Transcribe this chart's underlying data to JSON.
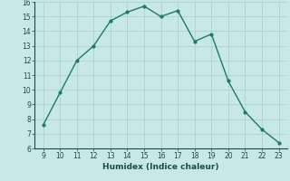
{
  "x": [
    9,
    10,
    11,
    12,
    13,
    14,
    15,
    16,
    17,
    18,
    19,
    20,
    21,
    22,
    23
  ],
  "y": [
    7.6,
    9.8,
    12.0,
    13.0,
    14.7,
    15.3,
    15.7,
    15.0,
    15.4,
    13.3,
    13.8,
    10.6,
    8.5,
    7.3,
    6.4
  ],
  "xlabel": "Humidex (Indice chaleur)",
  "xlim": [
    8.5,
    23.5
  ],
  "ylim": [
    6,
    16
  ],
  "yticks": [
    6,
    7,
    8,
    9,
    10,
    11,
    12,
    13,
    14,
    15,
    16
  ],
  "xticks": [
    9,
    10,
    11,
    12,
    13,
    14,
    15,
    16,
    17,
    18,
    19,
    20,
    21,
    22,
    23
  ],
  "line_color": "#1a7a6e",
  "bg_color": "#c8e8e8",
  "grid_color": "#a8cece",
  "font_color": "#1a4a4a",
  "tick_fontsize": 5.5,
  "xlabel_fontsize": 6.5
}
